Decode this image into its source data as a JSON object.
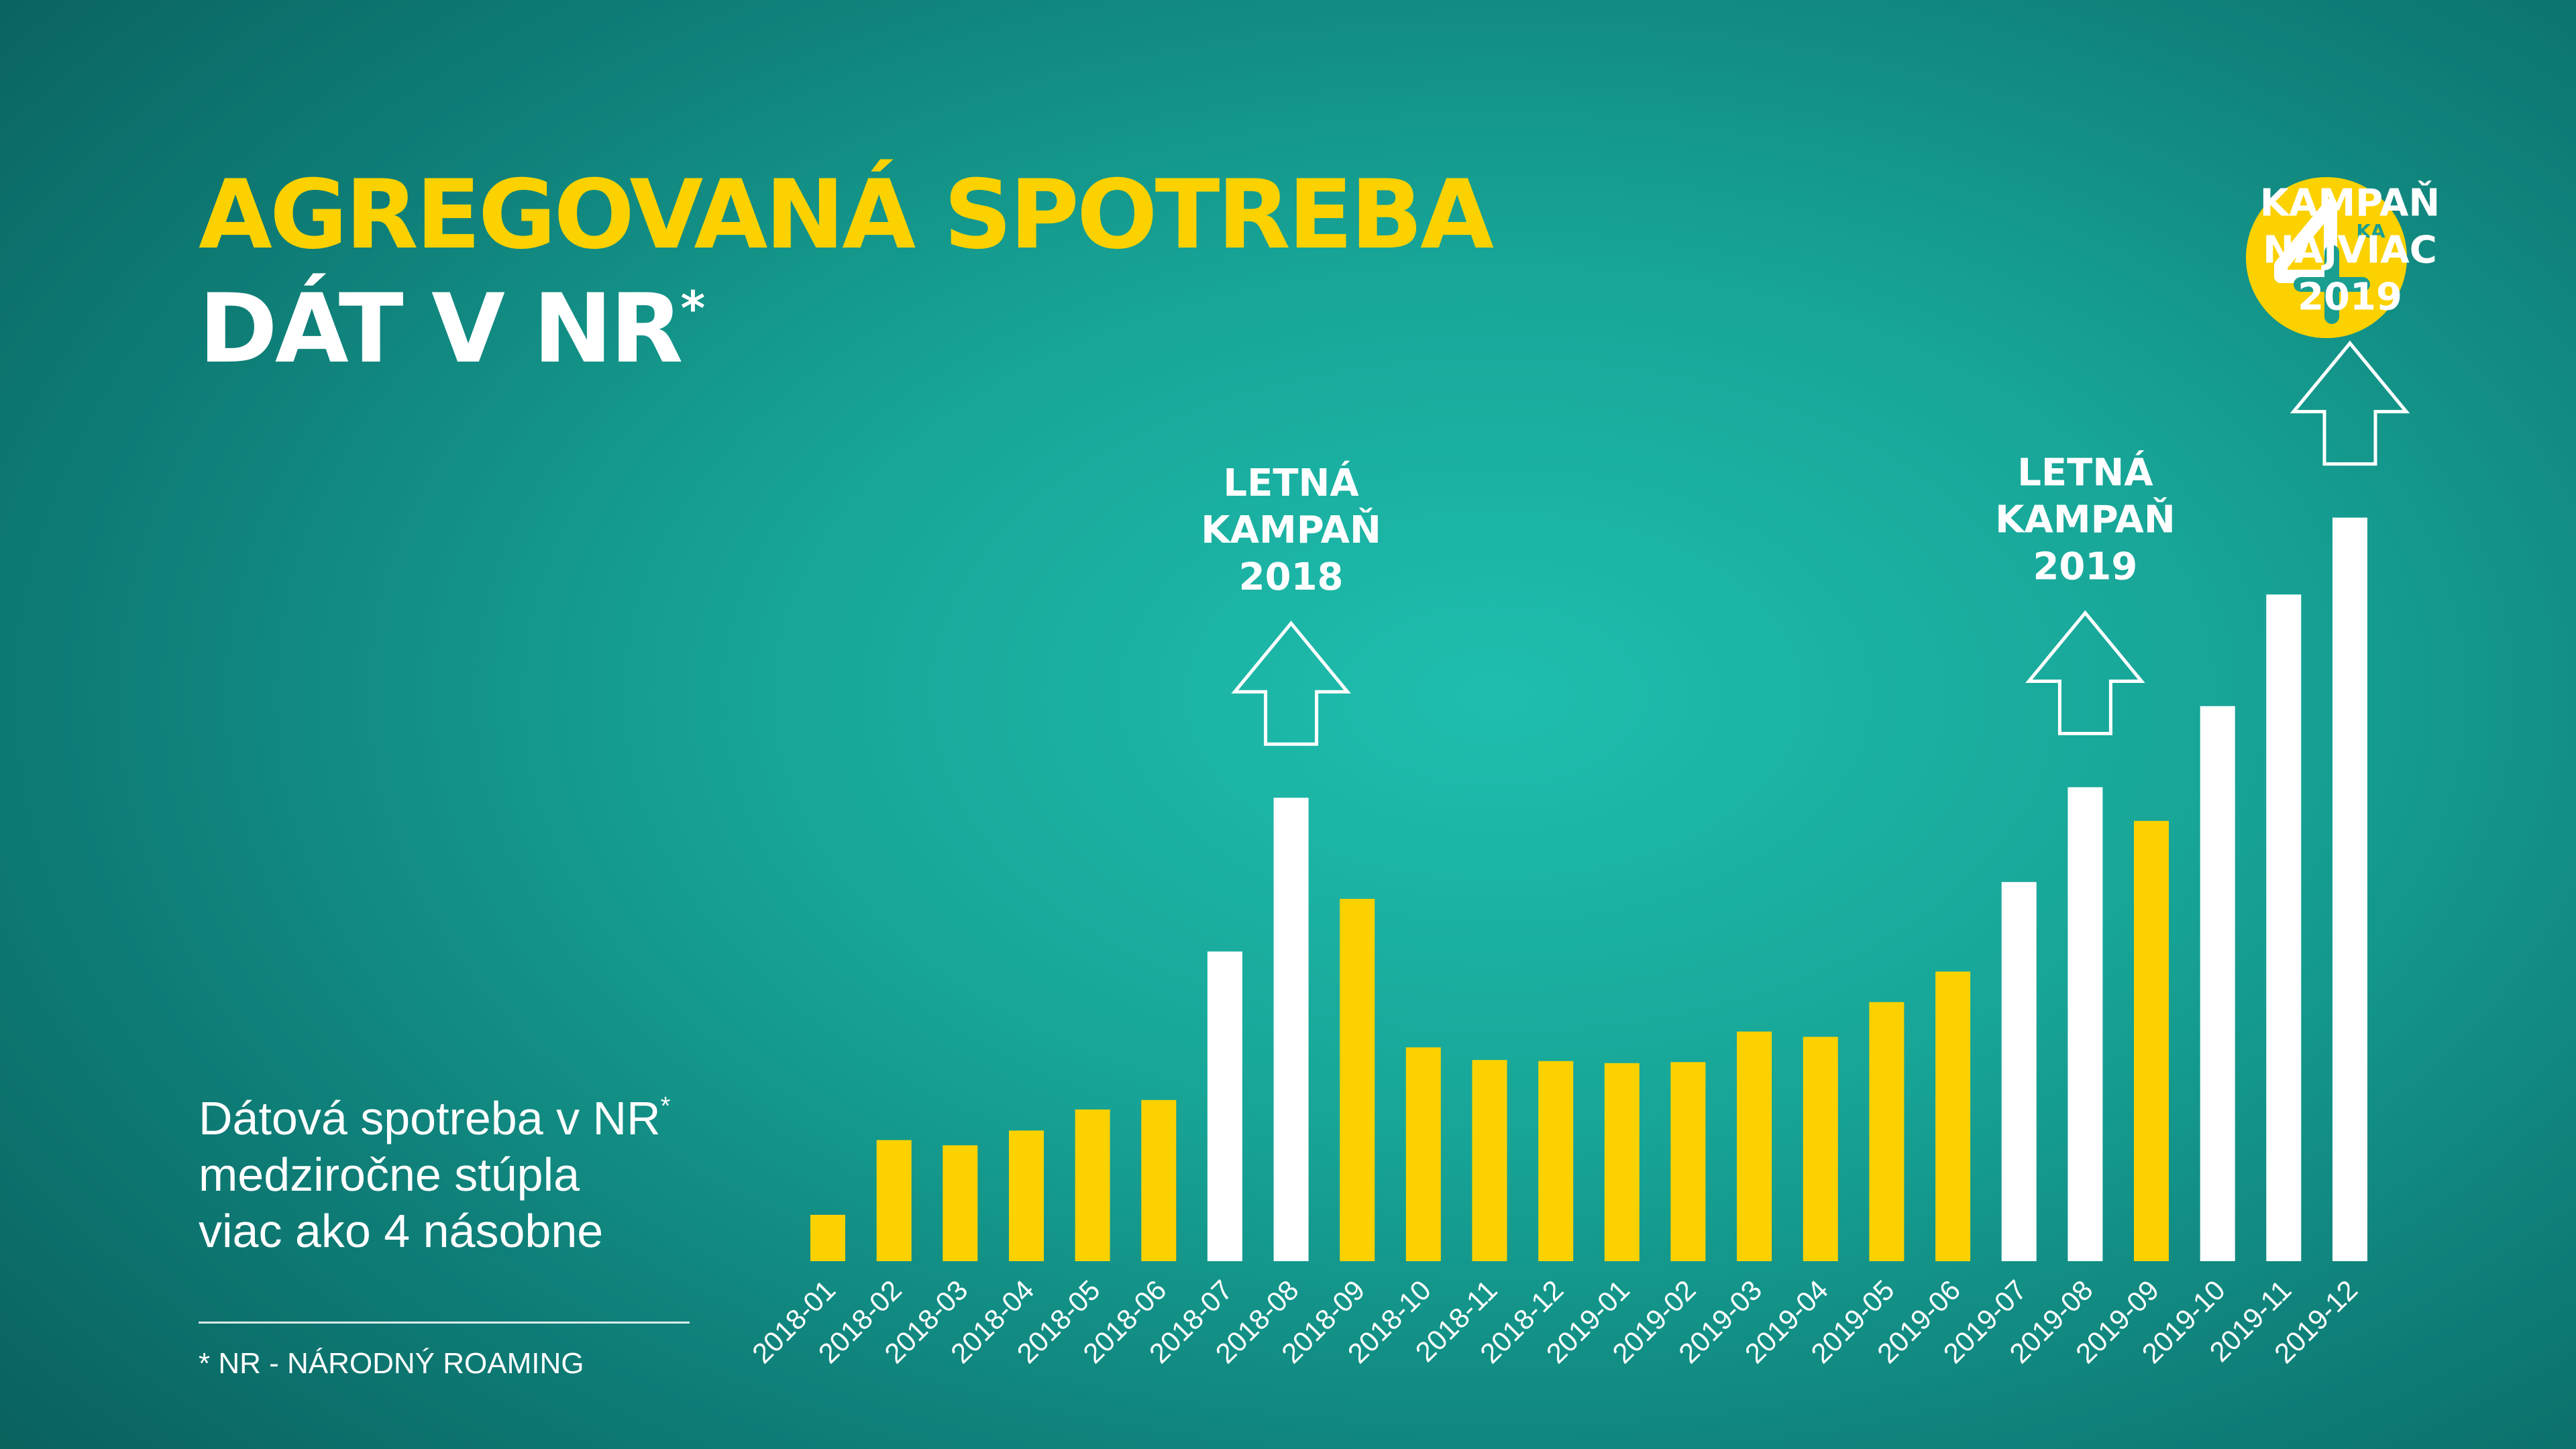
{
  "heading": {
    "line1": "AGREGOVANÁ SPOTREBA",
    "line2": "DÁT V NR",
    "line2_mark": "*"
  },
  "note": {
    "line1": "Dátová spotreba v NR",
    "line1_mark": "*",
    "line2": "medziročne stúpla",
    "line3": "viac ako 4 násobne"
  },
  "footnote": "* NR - NÁRODNÝ ROAMING",
  "logo": {
    "badge": "KA",
    "icon": "four-plus-logo-icon"
  },
  "colors": {
    "yellow": "#fcd100",
    "white": "#ffffff",
    "logo_plus": "#1a9e8f"
  },
  "chart_data": {
    "type": "bar",
    "title": "AGREGOVANÁ SPOTREBA DÁT V NR*",
    "categories": [
      "2018-01",
      "2018-02",
      "2018-03",
      "2018-04",
      "2018-05",
      "2018-06",
      "2018-07",
      "2018-08",
      "2018-09",
      "2018-10",
      "2018-11",
      "2018-12",
      "2019-01",
      "2019-02",
      "2019-03",
      "2019-04",
      "2019-05",
      "2019-06",
      "2019-07",
      "2019-08",
      "2019-09",
      "2019-10",
      "2019-11",
      "2019-12"
    ],
    "values": [
      4.4,
      11.5,
      11.0,
      12.4,
      14.4,
      15.3,
      29.4,
      44.0,
      34.4,
      20.3,
      19.1,
      19.0,
      18.8,
      18.9,
      21.8,
      21.3,
      24.6,
      27.5,
      36.0,
      45.0,
      41.8,
      52.7,
      63.3,
      70.6
    ],
    "bar_colors": [
      "#fcd100",
      "#fcd100",
      "#fcd100",
      "#fcd100",
      "#fcd100",
      "#fcd100",
      "#ffffff",
      "#ffffff",
      "#fcd100",
      "#fcd100",
      "#fcd100",
      "#fcd100",
      "#fcd100",
      "#fcd100",
      "#fcd100",
      "#fcd100",
      "#fcd100",
      "#fcd100",
      "#ffffff",
      "#ffffff",
      "#fcd100",
      "#ffffff",
      "#ffffff",
      "#ffffff"
    ],
    "y_axis_shown": false,
    "grid": false,
    "ylim": [
      0,
      100
    ],
    "annotations": [
      {
        "lines": [
          "LETNÁ",
          "KAMPAŇ",
          "2018"
        ],
        "bar_index": 7,
        "arrow": "up"
      },
      {
        "lines": [
          "LETNÁ",
          "KAMPAŇ",
          "2019"
        ],
        "bar_index": 19,
        "arrow": "up"
      },
      {
        "lines": [
          "KAMPAŇ",
          "NAJVIAC",
          "2019"
        ],
        "bar_index": 23,
        "arrow": "up"
      }
    ]
  }
}
